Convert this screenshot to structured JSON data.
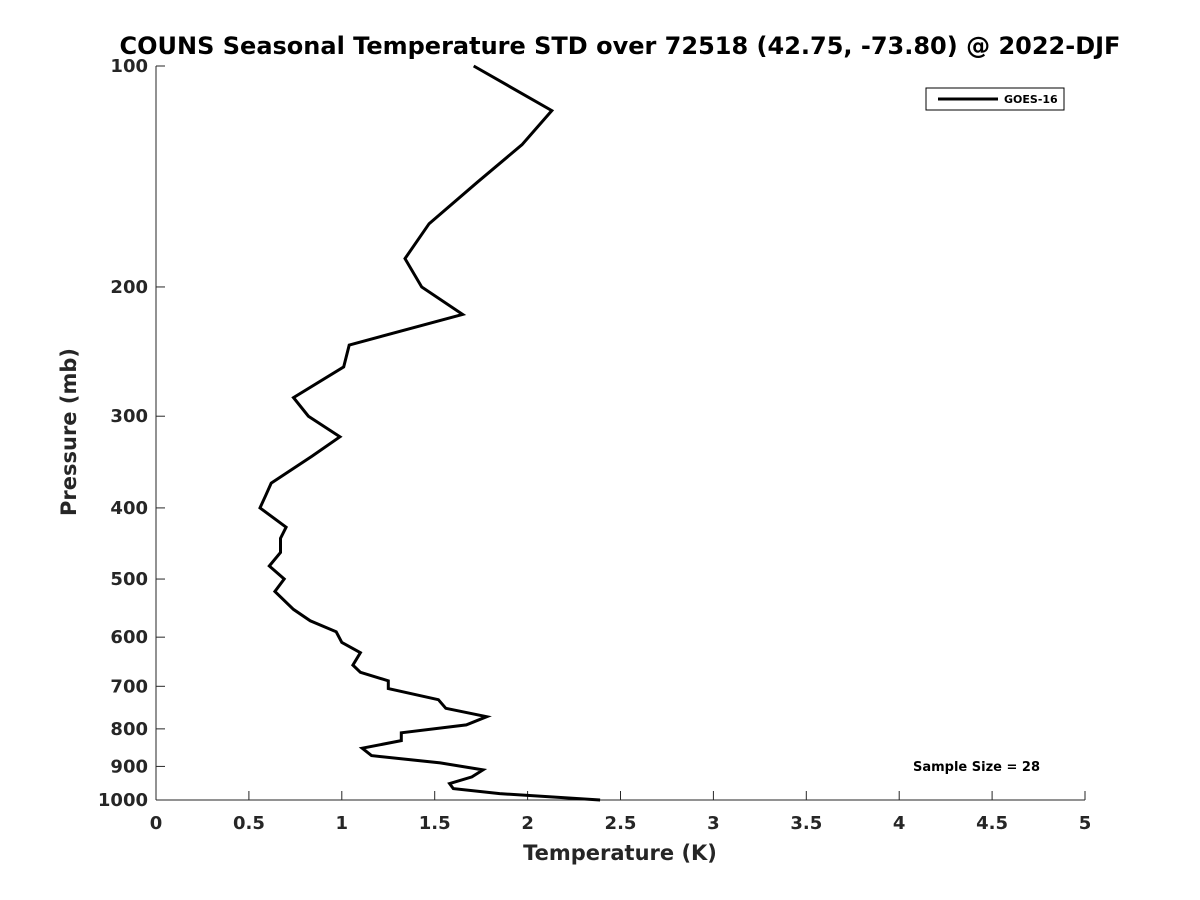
{
  "chart_data": {
    "type": "line",
    "title": "COUNS Seasonal Temperature STD over 72518 (42.75, -73.80) @ 2022-DJF",
    "xlabel": "Temperature (K)",
    "ylabel": "Pressure (mb)",
    "xlim": [
      0,
      5
    ],
    "ylim": [
      100,
      1000
    ],
    "y_scale": "log",
    "y_reversed": true,
    "x_ticks": [
      "0",
      "0.5",
      "1",
      "1.5",
      "2",
      "2.5",
      "3",
      "3.5",
      "4",
      "4.5",
      "5"
    ],
    "y_ticks": [
      "100",
      "200",
      "300",
      "400",
      "500",
      "600",
      "700",
      "800",
      "900",
      "1000"
    ],
    "grid": false,
    "legend_position": "top-right",
    "annotation": "Sample Size = 28",
    "series": [
      {
        "name": "GOES-16",
        "color": "#000000",
        "points": [
          [
            1.71,
            100
          ],
          [
            2.13,
            115
          ],
          [
            1.97,
            128
          ],
          [
            1.73,
            144
          ],
          [
            1.47,
            164
          ],
          [
            1.34,
            183
          ],
          [
            1.43,
            200
          ],
          [
            1.65,
            218
          ],
          [
            1.04,
            240
          ],
          [
            1.01,
            257
          ],
          [
            0.74,
            283
          ],
          [
            0.82,
            300
          ],
          [
            0.99,
            320
          ],
          [
            0.84,
            340
          ],
          [
            0.62,
            370
          ],
          [
            0.59,
            385
          ],
          [
            0.56,
            400
          ],
          [
            0.7,
            425
          ],
          [
            0.67,
            440
          ],
          [
            0.67,
            460
          ],
          [
            0.61,
            480
          ],
          [
            0.69,
            500
          ],
          [
            0.64,
            520
          ],
          [
            0.74,
            550
          ],
          [
            0.83,
            570
          ],
          [
            0.97,
            590
          ],
          [
            1.0,
            610
          ],
          [
            1.1,
            630
          ],
          [
            1.06,
            655
          ],
          [
            1.1,
            670
          ],
          [
            1.25,
            688
          ],
          [
            1.25,
            705
          ],
          [
            1.52,
            730
          ],
          [
            1.56,
            750
          ],
          [
            1.78,
            770
          ],
          [
            1.67,
            790
          ],
          [
            1.32,
            810
          ],
          [
            1.32,
            830
          ],
          [
            1.11,
            850
          ],
          [
            1.16,
            870
          ],
          [
            1.53,
            890
          ],
          [
            1.76,
            910
          ],
          [
            1.7,
            930
          ],
          [
            1.58,
            950
          ],
          [
            1.6,
            965
          ],
          [
            1.85,
            980
          ],
          [
            2.39,
            1000
          ]
        ]
      }
    ]
  }
}
